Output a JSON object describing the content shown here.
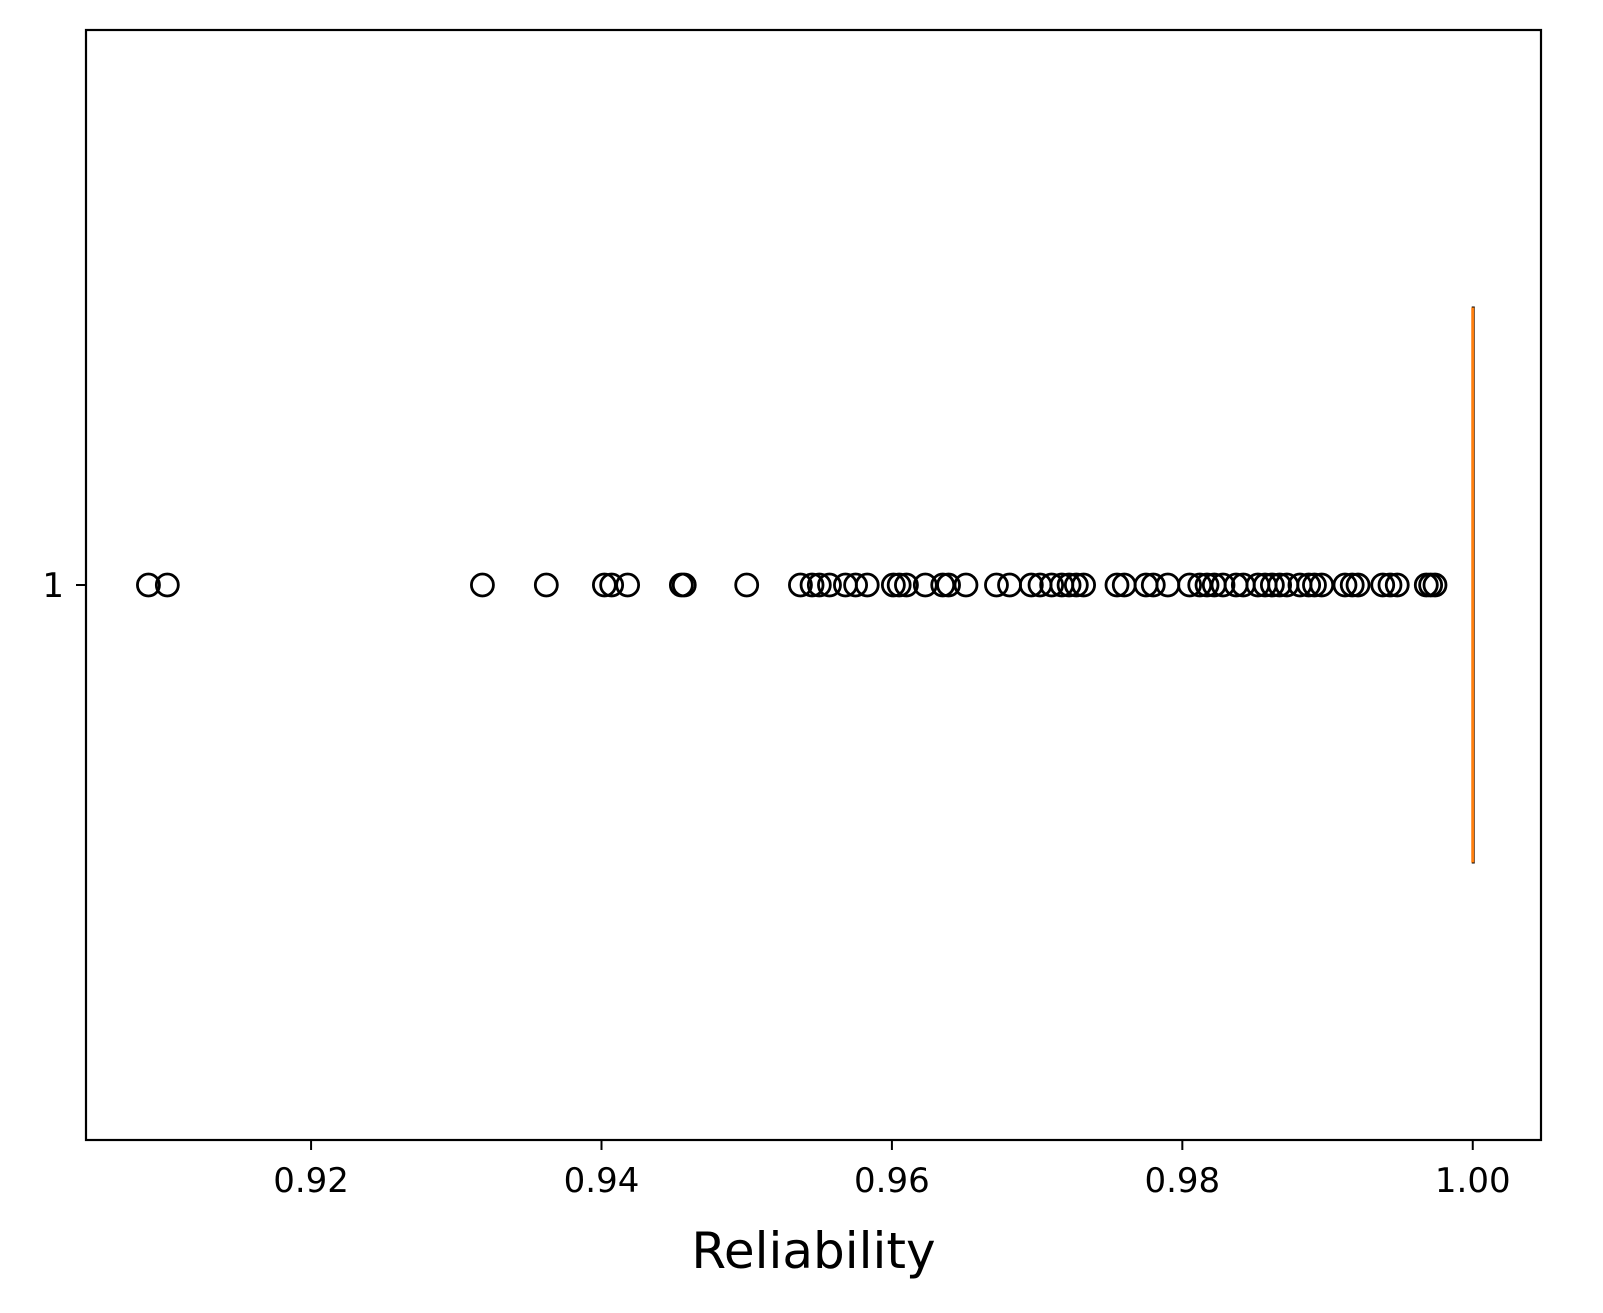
{
  "chart_data": {
    "type": "boxplot",
    "orientation": "horizontal",
    "title": "",
    "xlabel": "Reliability",
    "ylabel": "",
    "xlim": [
      0.9045,
      1.0047
    ],
    "ylim": [
      0.5,
      1.5
    ],
    "grid": false,
    "x_ticks": [
      0.92,
      0.94,
      0.96,
      0.98,
      1.0
    ],
    "x_tick_labels": [
      "0.92",
      "0.94",
      "0.96",
      "0.98",
      "1.00"
    ],
    "y_ticks": [
      1
    ],
    "y_tick_labels": [
      "1"
    ],
    "colors": {
      "median": "#ff7f0e",
      "box": "#000000",
      "outlier": "#000000"
    },
    "boxes": [
      {
        "position": 1,
        "q1": 1.0,
        "median": 1.0,
        "q3": 1.0,
        "whisker_low": 1.0,
        "whisker_high": 1.0,
        "outliers": [
          0.9088,
          0.9101,
          0.9318,
          0.9362,
          0.9402,
          0.9407,
          0.9418,
          0.9455,
          0.9457,
          0.95,
          0.9537,
          0.9545,
          0.955,
          0.9557,
          0.9568,
          0.9575,
          0.9583,
          0.9601,
          0.9605,
          0.961,
          0.9623,
          0.9635,
          0.9639,
          0.9651,
          0.9672,
          0.9681,
          0.9696,
          0.9702,
          0.971,
          0.9717,
          0.9722,
          0.9727,
          0.9732,
          0.9755,
          0.976,
          0.9775,
          0.978,
          0.979,
          0.9805,
          0.9812,
          0.9817,
          0.9822,
          0.9828,
          0.9837,
          0.9842,
          0.9852,
          0.9857,
          0.9862,
          0.9867,
          0.9872,
          0.9881,
          0.9887,
          0.9891,
          0.9896,
          0.9912,
          0.9917,
          0.9921,
          0.9938,
          0.9943,
          0.9948,
          0.9968,
          0.9971,
          0.9974
        ]
      }
    ]
  }
}
